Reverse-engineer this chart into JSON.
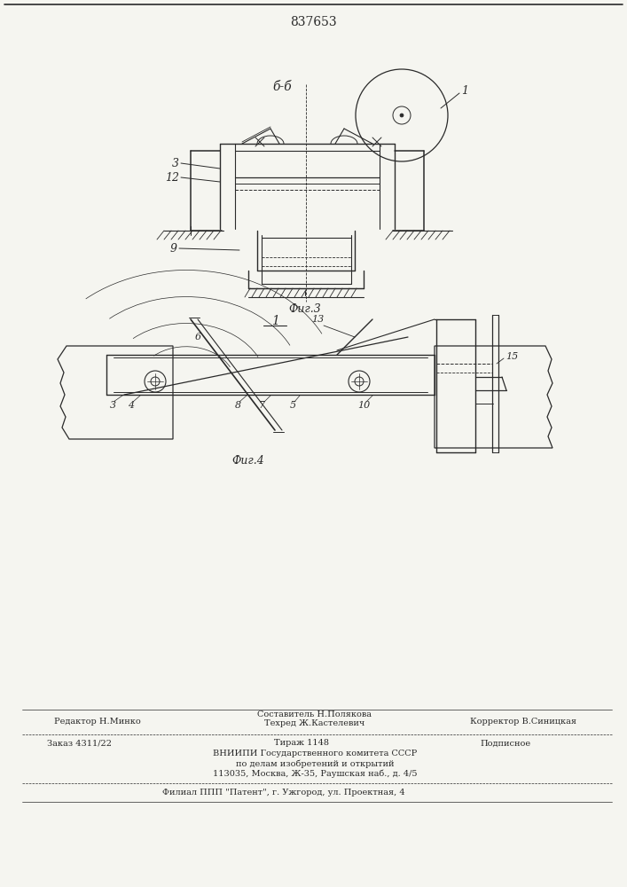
{
  "patent_number": "837653",
  "top_label": "837653",
  "fig3_label": "Фиг.3",
  "fig4_label": "Фиг.4",
  "section_label": "б-б",
  "fig_num_1": "1",
  "editor_line": "Редактор Н.Минко",
  "composer_line": "Составитель Н.Полякова",
  "tech_line": "Техред Ж.Кастелевич",
  "corrector_line": "Корректор В.Синицкая",
  "order_line": "Заказ 4311/22",
  "tirazh_line": "Тираж 1148",
  "podpisnoe_line": "Подписное",
  "vniip_line1": "ВНИИПИ Государственного комитета СССР",
  "vniip_line2": "по делам изобретений и открытий",
  "vniip_line3": "113035, Москва, Ж-35, Раушская наб., д. 4/5",
  "filial_line": "Филиал ППП \"Патент\", г. Ужгород, ул. Проектная, 4",
  "bg_color": "#f5f5f0",
  "line_color": "#2a2a2a",
  "text_color": "#2a2a2a"
}
